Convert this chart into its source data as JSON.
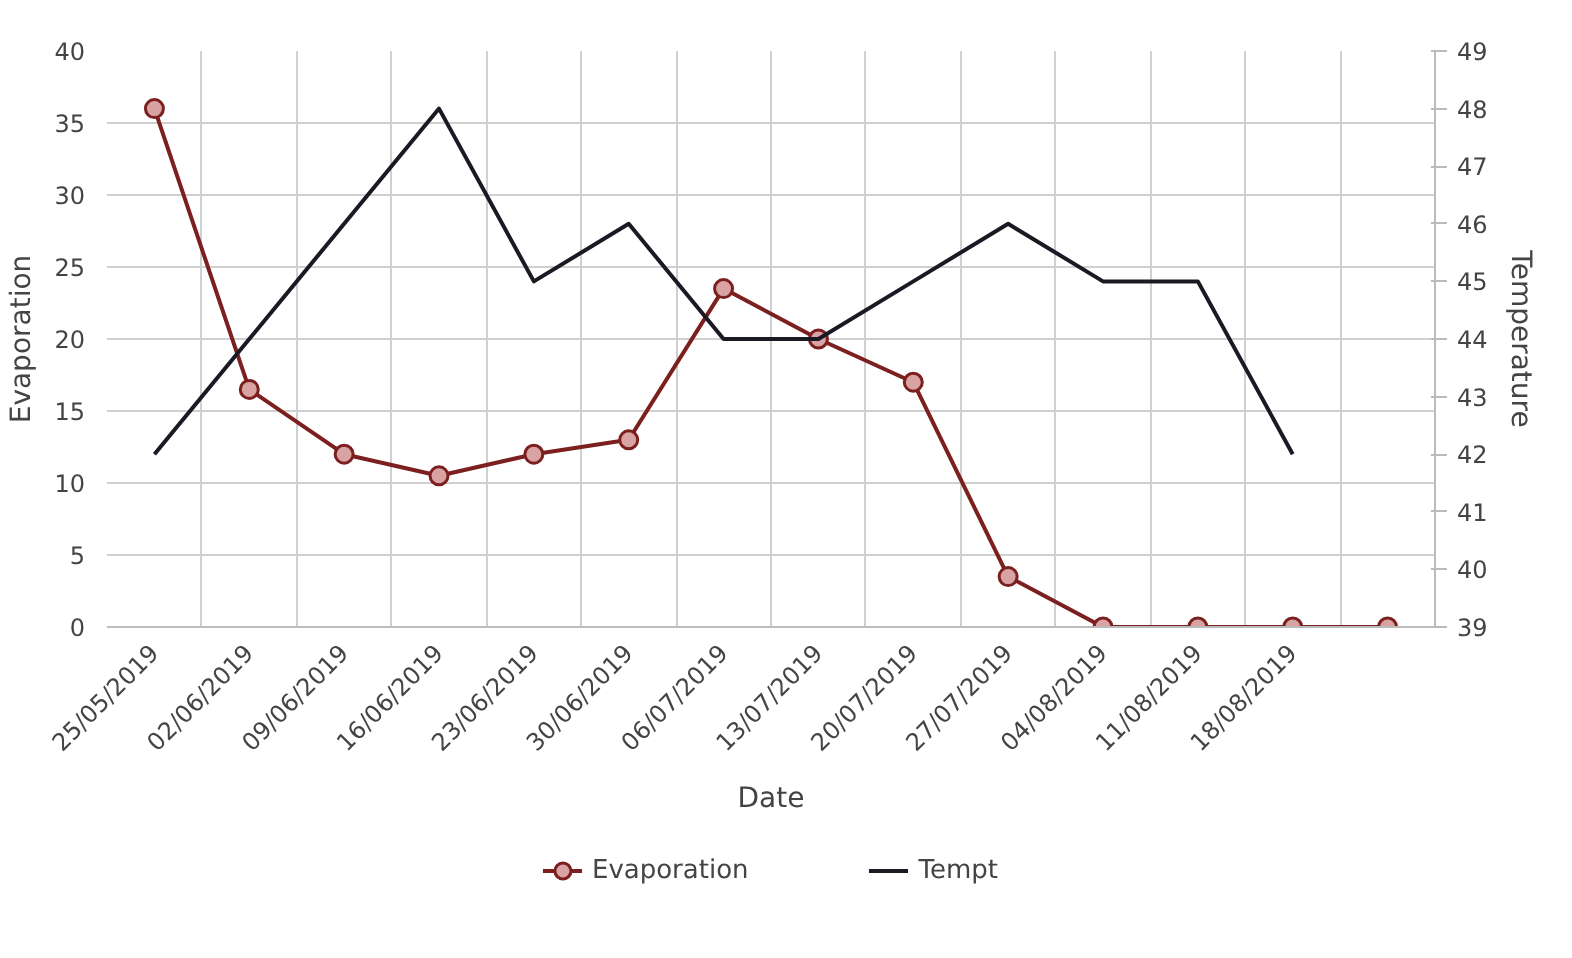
{
  "chart_data": {
    "type": "line",
    "xlabel": "Date",
    "ylabel": "Evaporation",
    "y2label": "Temperature",
    "categories": [
      "25/05/2019",
      "02/06/2019",
      "09/06/2019",
      "16/06/2019",
      "23/06/2019",
      "30/06/2019",
      "06/07/2019",
      "13/07/2019",
      "20/07/2019",
      "27/07/2019",
      "04/08/2019",
      "11/08/2019",
      "18/08/2019",
      null
    ],
    "series": [
      {
        "name": "Evaporation",
        "color": "#7b1f1f",
        "marker": "circle",
        "values": [
          36,
          16.5,
          12,
          10.5,
          12,
          13,
          23.5,
          20,
          17,
          3.5,
          0,
          0,
          0,
          0
        ]
      },
      {
        "name": "Tempt",
        "color": "#1a1a24",
        "axis": "y2",
        "marker": "none",
        "values": [
          42,
          44,
          46,
          48,
          45,
          46,
          44,
          44,
          45,
          46,
          45,
          45,
          42,
          null
        ]
      }
    ],
    "ylim": [
      0,
      40
    ],
    "yticks": [
      0,
      5,
      10,
      15,
      20,
      25,
      30,
      35,
      40
    ],
    "y2lim": [
      39,
      49
    ],
    "y2ticks": [
      39,
      40,
      41,
      42,
      43,
      44,
      45,
      46,
      47,
      48,
      49
    ],
    "grid": true,
    "legend": "bottom",
    "line_style": "solid"
  }
}
